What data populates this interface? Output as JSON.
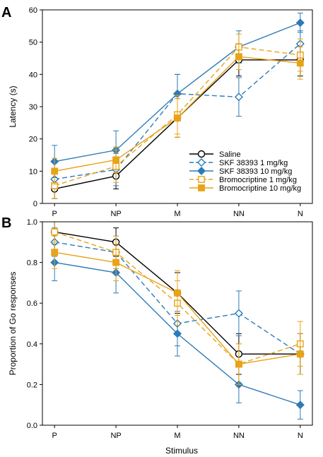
{
  "figure": {
    "xlabel": "Stimulus",
    "categories": [
      "P",
      "NP",
      "M",
      "NN",
      "N"
    ],
    "colors": {
      "saline": "#000000",
      "skf": "#2b7bba",
      "bromo": "#e8a317"
    }
  },
  "legend": [
    {
      "label": "Saline",
      "color": "#000000",
      "dash": false,
      "marker": "circle",
      "filled": false
    },
    {
      "label": "SKF 38393 1 mg/kg",
      "color": "#2b7bba",
      "dash": true,
      "marker": "diamond",
      "filled": false
    },
    {
      "label": "SKF 38393 10 mg/kg",
      "color": "#2b7bba",
      "dash": false,
      "marker": "diamond",
      "filled": true
    },
    {
      "label": "Bromocriptine 1 mg/kg",
      "color": "#e8a317",
      "dash": true,
      "marker": "square",
      "filled": false
    },
    {
      "label": "Bromocriptine 10 mg/kg",
      "color": "#e8a317",
      "dash": false,
      "marker": "square",
      "filled": true
    }
  ],
  "chart_data": [
    {
      "type": "line",
      "panel": "A",
      "ylabel": "Latency (s)",
      "categories": [
        "P",
        "NP",
        "M",
        "NN",
        "N"
      ],
      "ylim": [
        0,
        60
      ],
      "yticks": [
        0,
        10,
        20,
        30,
        40,
        50,
        60
      ],
      "series": [
        {
          "name": "Saline",
          "values": [
            4.5,
            8.5,
            26.5,
            44.5,
            44.5
          ],
          "err": [
            3,
            4,
            6,
            5,
            5
          ]
        },
        {
          "name": "SKF 38393 1 mg/kg",
          "values": [
            7.5,
            10.5,
            34,
            33,
            49.5
          ],
          "err": [
            3,
            5,
            6,
            6,
            4
          ]
        },
        {
          "name": "SKF 38393 10 mg/kg",
          "values": [
            13,
            16.5,
            34,
            48.5,
            56
          ],
          "err": [
            5,
            6,
            6,
            5,
            3
          ]
        },
        {
          "name": "Bromocriptine 1 mg/kg",
          "values": [
            5.5,
            11.5,
            27.5,
            48.5,
            46
          ],
          "err": [
            4,
            5,
            6,
            4,
            5
          ]
        },
        {
          "name": "Bromocriptine 10 mg/kg",
          "values": [
            10,
            13.5,
            26.5,
            45.5,
            43.5
          ],
          "err": [
            4,
            4,
            6,
            4,
            5
          ]
        }
      ]
    },
    {
      "type": "line",
      "panel": "B",
      "ylabel": "Proportion of Go responses",
      "categories": [
        "P",
        "NP",
        "M",
        "NN",
        "N"
      ],
      "ylim": [
        0,
        1.0
      ],
      "yticks": [
        "0.0",
        "0.2",
        "0.4",
        "0.6",
        "0.8",
        "1.0"
      ],
      "series": [
        {
          "name": "Saline",
          "values": [
            0.95,
            0.9,
            0.65,
            0.35,
            0.35
          ],
          "err": [
            0.05,
            0.07,
            0.1,
            0.1,
            0.1
          ]
        },
        {
          "name": "SKF 38393 1 mg/kg",
          "values": [
            0.9,
            0.85,
            0.5,
            0.55,
            0.35
          ],
          "err": [
            0.07,
            0.08,
            0.11,
            0.11,
            0.1
          ]
        },
        {
          "name": "SKF 38393 10 mg/kg",
          "values": [
            0.8,
            0.75,
            0.45,
            0.2,
            0.1
          ],
          "err": [
            0.09,
            0.1,
            0.11,
            0.09,
            0.07
          ]
        },
        {
          "name": "Bromocriptine 1 mg/kg",
          "values": [
            0.95,
            0.85,
            0.6,
            0.3,
            0.4
          ],
          "err": [
            0.05,
            0.08,
            0.11,
            0.1,
            0.11
          ]
        },
        {
          "name": "Bromocriptine 10 mg/kg",
          "values": [
            0.85,
            0.8,
            0.65,
            0.3,
            0.35
          ],
          "err": [
            0.08,
            0.09,
            0.11,
            0.1,
            0.1
          ]
        }
      ]
    }
  ]
}
